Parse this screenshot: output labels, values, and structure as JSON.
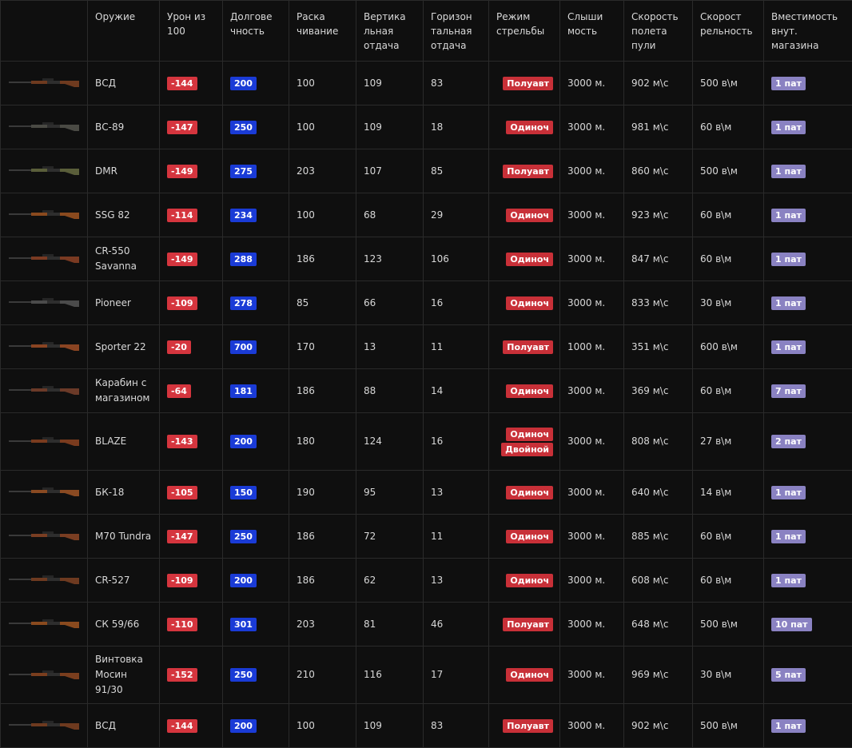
{
  "headers": [
    "",
    "Оружие",
    "Урон из 100",
    "Долговечность",
    "Раскачивание",
    "Вертикальная отдача",
    "Горизонтальная отдача",
    "Режим стрельбы",
    "Слышимость",
    "Скорость полета пули",
    "Скорострельность",
    "Вместимость внут. магазина"
  ],
  "header_lines": [
    [
      ""
    ],
    [
      "Оружие"
    ],
    [
      "Урон из",
      "100"
    ],
    [
      "Долгове",
      "чность"
    ],
    [
      "Раска",
      "чивание"
    ],
    [
      "Вертика",
      "льная",
      "отдача"
    ],
    [
      "Горизон",
      "тальная",
      "отдача"
    ],
    [
      "Режим",
      "стрельбы"
    ],
    [
      "Слыши",
      "мость"
    ],
    [
      "Скорость",
      "полета",
      "пули"
    ],
    [
      "Скорост",
      "рельность"
    ],
    [
      "Вместимость",
      "внут.",
      "магазина"
    ]
  ],
  "rows": [
    {
      "name": "ВСД",
      "damage": "-144",
      "durability": "200",
      "sway": "100",
      "vrecoil": "109",
      "hrecoil": "83",
      "modes": [
        "Полуавт"
      ],
      "audibility": "3000 м.",
      "velocity": "902 м\\с",
      "rof": "500 в\\м",
      "mag": "1 пат",
      "icon": "rifle-vsd-icon"
    },
    {
      "name": "ВС-89",
      "damage": "-147",
      "durability": "250",
      "sway": "100",
      "vrecoil": "109",
      "hrecoil": "18",
      "modes": [
        "Одиноч"
      ],
      "audibility": "3000 м.",
      "velocity": "981 м\\с",
      "rof": "60 в\\м",
      "mag": "1 пат",
      "icon": "rifle-vs89-icon"
    },
    {
      "name": "DMR",
      "damage": "-149",
      "durability": "275",
      "sway": "203",
      "vrecoil": "107",
      "hrecoil": "85",
      "modes": [
        "Полуавт"
      ],
      "audibility": "3000 м.",
      "velocity": "860 м\\с",
      "rof": "500 в\\м",
      "mag": "1 пат",
      "icon": "rifle-dmr-icon"
    },
    {
      "name": "SSG 82",
      "damage": "-114",
      "durability": "234",
      "sway": "100",
      "vrecoil": "68",
      "hrecoil": "29",
      "modes": [
        "Одиноч"
      ],
      "audibility": "3000 м.",
      "velocity": "923 м\\с",
      "rof": "60 в\\м",
      "mag": "1 пат",
      "icon": "rifle-ssg82-icon"
    },
    {
      "name": "CR-550 Savanna",
      "damage": "-149",
      "durability": "288",
      "sway": "186",
      "vrecoil": "123",
      "hrecoil": "106",
      "modes": [
        "Одиноч"
      ],
      "audibility": "3000 м.",
      "velocity": "847 м\\с",
      "rof": "60 в\\м",
      "mag": "1 пат",
      "icon": "rifle-cr550-icon"
    },
    {
      "name": "Pioneer",
      "damage": "-109",
      "durability": "278",
      "sway": "85",
      "vrecoil": "66",
      "hrecoil": "16",
      "modes": [
        "Одиноч"
      ],
      "audibility": "3000 м.",
      "velocity": "833 м\\с",
      "rof": "30 в\\м",
      "mag": "1 пат",
      "icon": "rifle-pioneer-icon"
    },
    {
      "name": "Sporter 22",
      "damage": "-20",
      "durability": "700",
      "sway": "170",
      "vrecoil": "13",
      "hrecoil": "11",
      "modes": [
        "Полуавт"
      ],
      "audibility": "1000 м.",
      "velocity": "351 м\\с",
      "rof": "600 в\\м",
      "mag": "1 пат",
      "icon": "rifle-sporter22-icon"
    },
    {
      "name": "Карабин с магазином",
      "damage": "-64",
      "durability": "181",
      "sway": "186",
      "vrecoil": "88",
      "hrecoil": "14",
      "modes": [
        "Одиноч"
      ],
      "audibility": "3000 м.",
      "velocity": "369 м\\с",
      "rof": "60 в\\м",
      "mag": "7 пат",
      "icon": "rifle-carbine-icon"
    },
    {
      "name": "BLAZE",
      "damage": "-143",
      "durability": "200",
      "sway": "180",
      "vrecoil": "124",
      "hrecoil": "16",
      "modes": [
        "Одиноч",
        "Двойной"
      ],
      "audibility": "3000 м.",
      "velocity": "808 м\\с",
      "rof": "27 в\\м",
      "mag": "2 пат",
      "icon": "rifle-blaze-icon"
    },
    {
      "name": "БК-18",
      "damage": "-105",
      "durability": "150",
      "sway": "190",
      "vrecoil": "95",
      "hrecoil": "13",
      "modes": [
        "Одиноч"
      ],
      "audibility": "3000 м.",
      "velocity": "640 м\\с",
      "rof": "14 в\\м",
      "mag": "1 пат",
      "icon": "rifle-bk18-icon"
    },
    {
      "name": "M70 Tundra",
      "damage": "-147",
      "durability": "250",
      "sway": "186",
      "vrecoil": "72",
      "hrecoil": "11",
      "modes": [
        "Одиноч"
      ],
      "audibility": "3000 м.",
      "velocity": "885 м\\с",
      "rof": "60 в\\м",
      "mag": "1 пат",
      "icon": "rifle-m70-icon"
    },
    {
      "name": "CR-527",
      "damage": "-109",
      "durability": "200",
      "sway": "186",
      "vrecoil": "62",
      "hrecoil": "13",
      "modes": [
        "Одиноч"
      ],
      "audibility": "3000 м.",
      "velocity": "608 м\\с",
      "rof": "60 в\\м",
      "mag": "1 пат",
      "icon": "rifle-cr527-icon"
    },
    {
      "name": "СК 59/66",
      "damage": "-110",
      "durability": "301",
      "sway": "203",
      "vrecoil": "81",
      "hrecoil": "46",
      "modes": [
        "Полуавт"
      ],
      "audibility": "3000 м.",
      "velocity": "648 м\\с",
      "rof": "500 в\\м",
      "mag": "10 пат",
      "icon": "rifle-sk5966-icon"
    },
    {
      "name": "Винтовка Мосин 91/30",
      "damage": "-152",
      "durability": "250",
      "sway": "210",
      "vrecoil": "116",
      "hrecoil": "17",
      "modes": [
        "Одиноч"
      ],
      "audibility": "3000 м.",
      "velocity": "969 м\\с",
      "rof": "30 в\\м",
      "mag": "5 пат",
      "icon": "rifle-mosin-icon"
    },
    {
      "name": "ВСД",
      "damage": "-144",
      "durability": "200",
      "sway": "100",
      "vrecoil": "109",
      "hrecoil": "83",
      "modes": [
        "Полуавт"
      ],
      "audibility": "3000 м.",
      "velocity": "902 м\\с",
      "rof": "500 в\\м",
      "mag": "1 пат",
      "icon": "rifle-vsd-icon"
    }
  ],
  "colors": {
    "damage": "#d5353e",
    "durability": "#1a3bd6",
    "mode": "#c83038",
    "mag": "#8a82c2",
    "background": "#0f0f0f"
  }
}
